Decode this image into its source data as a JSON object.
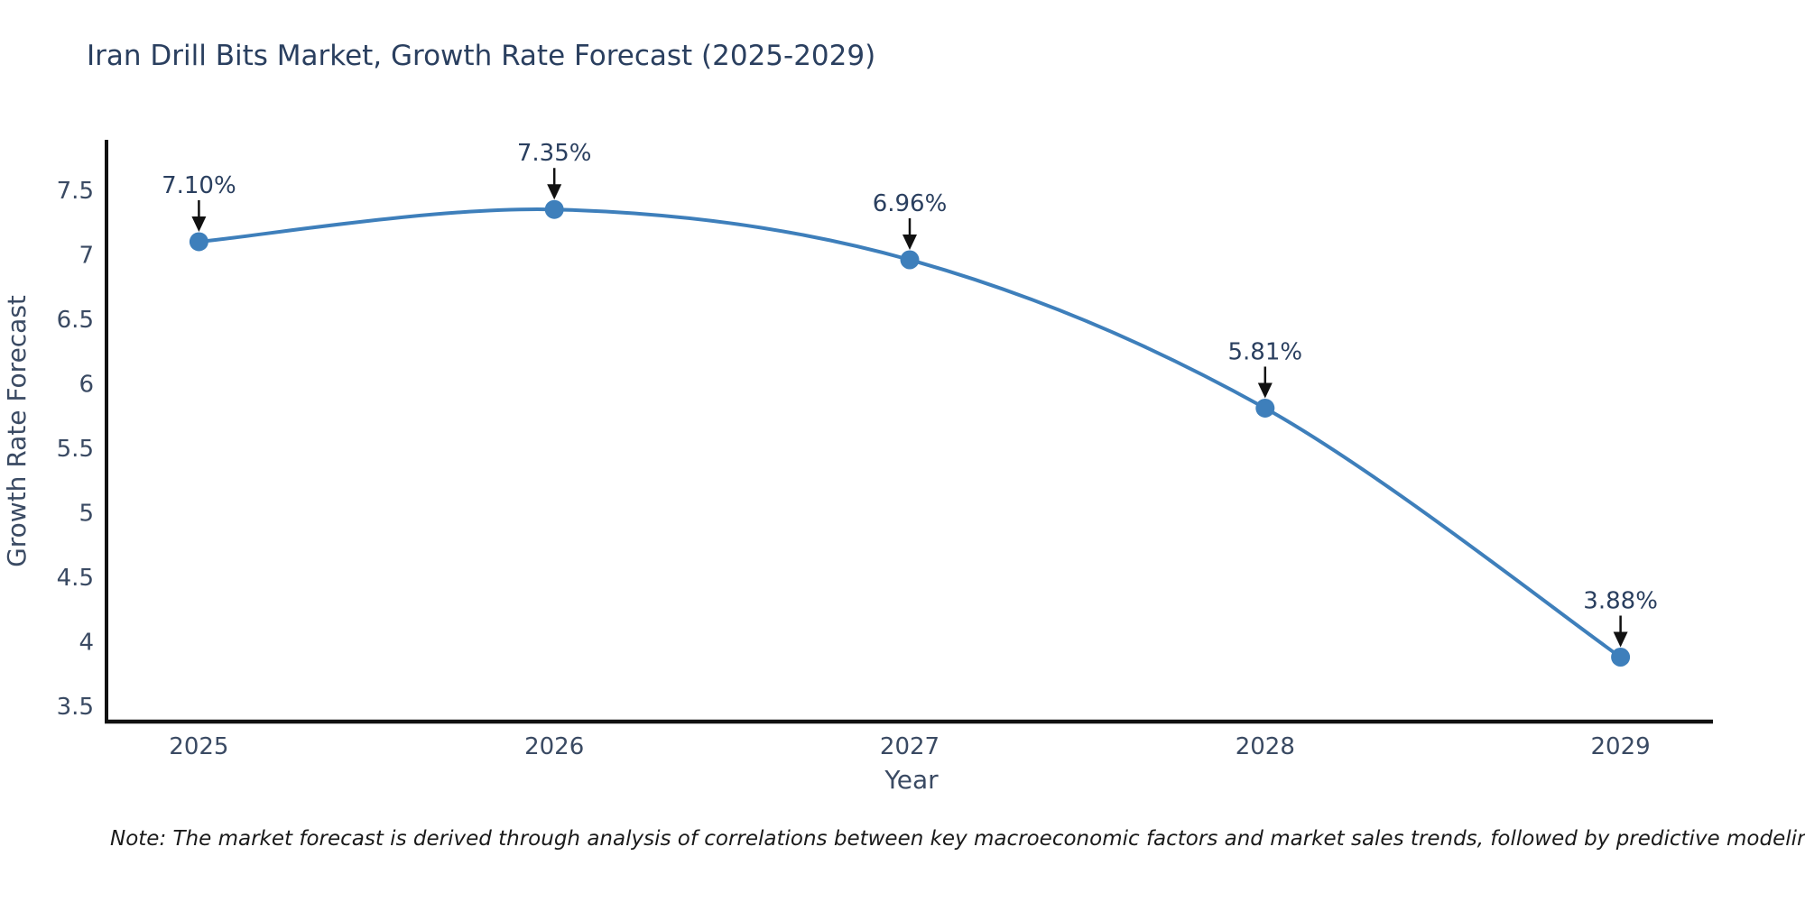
{
  "note": "Note: The market forecast is derived through analysis of correlations between key macroeconomic factors and market sales trends, followed by predictive modeling to project future sales",
  "colors": {
    "line": "#3e7fbb",
    "marker": "#3e7fbb",
    "axis": "#111111",
    "title_text": "#2a3f5f",
    "tick_text": "#3a4a63",
    "annotation": "#111111"
  },
  "chart_data": {
    "type": "line",
    "title": "Iran Drill Bits Market, Growth Rate Forecast (2025-2029)",
    "xlabel": "Year",
    "ylabel": "Growth Rate Forecast",
    "x": [
      2025,
      2026,
      2027,
      2028,
      2029
    ],
    "values": [
      7.1,
      7.35,
      6.96,
      5.81,
      3.88
    ],
    "point_labels": [
      "7.10%",
      "7.35%",
      "6.96%",
      "5.81%",
      "3.88%"
    ],
    "x_ticks": [
      "2025",
      "2026",
      "2027",
      "2028",
      "2029"
    ],
    "y_ticks": [
      3.5,
      4,
      4.5,
      5,
      5.5,
      6,
      6.5,
      7,
      7.5
    ],
    "xlim": [
      2024.74,
      2029.26
    ],
    "ylim": [
      3.38,
      7.89
    ],
    "line_shape": "spline",
    "grid": false,
    "legend": false,
    "annotations_arrow": "down-arrow"
  }
}
